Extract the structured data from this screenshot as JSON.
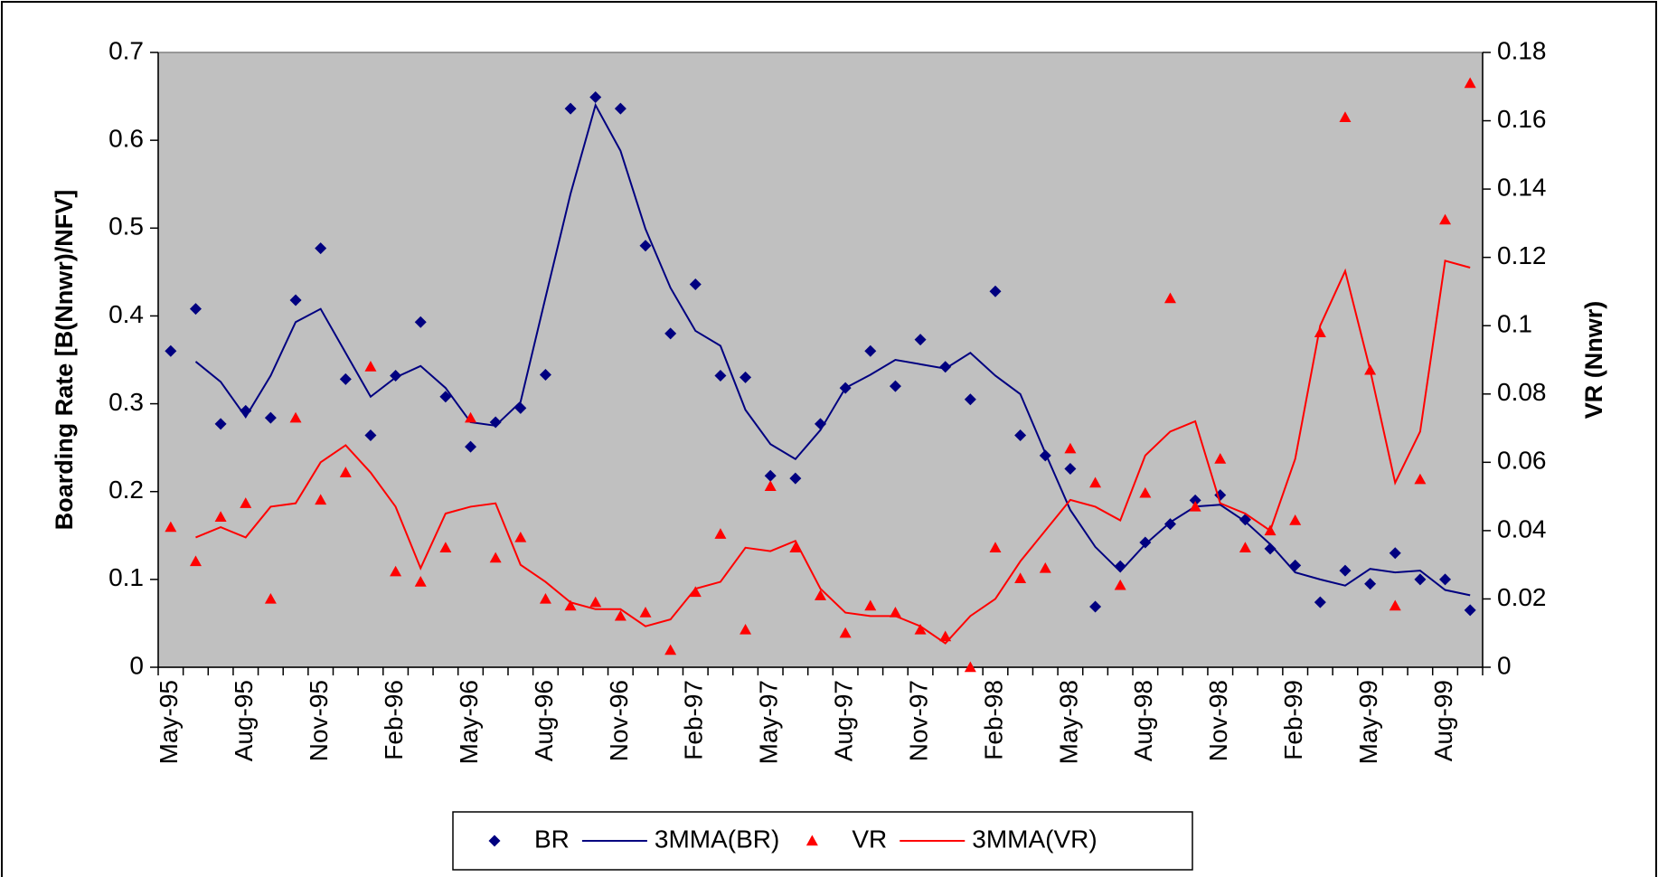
{
  "chart_data": {
    "type": "line",
    "y_label": "Boarding Rate [B(Nnwr)/NFV]",
    "y2_label": "VR (Nnwr)",
    "categories": [
      "May-95",
      null,
      null,
      "Aug-95",
      null,
      null,
      "Nov-95",
      null,
      null,
      "Feb-96",
      null,
      null,
      "May-96",
      null,
      null,
      "Aug-96",
      null,
      null,
      "Nov-96",
      null,
      null,
      "Feb-97",
      null,
      null,
      "May-97",
      null,
      null,
      "Aug-97",
      null,
      null,
      "Nov-97",
      null,
      null,
      "Feb-98",
      null,
      null,
      "May-98",
      null,
      null,
      "Aug-98",
      null,
      null,
      "Nov-98",
      null,
      null,
      "Feb-99",
      null,
      null,
      "May-99",
      null,
      null,
      "Aug-99",
      null
    ],
    "ylim": [
      0,
      0.7
    ],
    "yticks": [
      0,
      0.1,
      0.2,
      0.3,
      0.4,
      0.5,
      0.6,
      0.7
    ],
    "y2lim": [
      0,
      0.18
    ],
    "y2ticks": [
      0,
      0.02,
      0.04,
      0.06,
      0.08,
      0.1,
      0.12,
      0.14,
      0.16,
      0.18
    ],
    "background": "#c0c0c0",
    "legend": "bottom",
    "series": [
      {
        "name": "BR",
        "color": "#000080",
        "mode": "markers",
        "marker": "diamond",
        "values": [
          0.36,
          0.408,
          0.277,
          0.292,
          0.284,
          0.418,
          0.477,
          0.328,
          0.264,
          0.332,
          0.393,
          0.308,
          0.251,
          0.279,
          0.295,
          0.333,
          0.636,
          0.649,
          0.636,
          0.48,
          0.38,
          0.436,
          0.332,
          0.33,
          0.218,
          0.215,
          0.277,
          0.318,
          0.36,
          0.32,
          0.373,
          0.342,
          0.305,
          0.428,
          0.264,
          0.241,
          0.226,
          0.069,
          0.115,
          0.142,
          0.163,
          0.19,
          0.196,
          0.168,
          0.135,
          0.116,
          0.074,
          0.11,
          0.095,
          0.13,
          0.1,
          0.1,
          0.065
        ]
      },
      {
        "name": "3MMA(BR)",
        "color": "#000080",
        "mode": "line",
        "values": [
          null,
          0.348,
          0.325,
          0.285,
          0.332,
          0.393,
          0.408,
          0.358,
          0.308,
          0.33,
          0.343,
          0.318,
          0.279,
          0.275,
          0.302,
          0.421,
          0.539,
          0.64,
          0.588,
          0.499,
          0.432,
          0.383,
          0.366,
          0.293,
          0.254,
          0.237,
          0.27,
          0.318,
          0.333,
          0.35,
          0.345,
          0.34,
          0.358,
          0.332,
          0.311,
          0.244,
          0.179,
          0.137,
          0.109,
          0.14,
          0.165,
          0.183,
          0.185,
          0.166,
          0.14,
          0.108,
          0.1,
          0.093,
          0.112,
          0.108,
          0.11,
          0.088,
          0.082
        ]
      },
      {
        "name": "VR",
        "color": "#ff0000",
        "mode": "markers",
        "marker": "triangle",
        "axis": "y2",
        "values": [
          0.041,
          0.031,
          0.044,
          0.048,
          0.02,
          0.073,
          0.049,
          0.057,
          0.088,
          0.028,
          0.025,
          0.035,
          0.073,
          0.032,
          0.038,
          0.02,
          0.018,
          0.019,
          0.015,
          0.016,
          0.005,
          0.022,
          0.039,
          0.011,
          0.053,
          0.035,
          0.021,
          0.01,
          0.018,
          0.016,
          0.011,
          0.009,
          0,
          0.035,
          0.026,
          0.029,
          0.064,
          0.054,
          0.024,
          0.051,
          0.108,
          0.047,
          0.061,
          0.035,
          0.04,
          0.043,
          0.098,
          0.161,
          0.087,
          0.018,
          0.055,
          0.131,
          0.171
        ]
      },
      {
        "name": "3MMA(VR)",
        "color": "#ff0000",
        "mode": "line",
        "axis": "y2",
        "values": [
          null,
          0.038,
          0.041,
          0.038,
          0.047,
          0.048,
          0.06,
          0.065,
          0.057,
          0.047,
          0.029,
          0.045,
          0.047,
          0.048,
          0.03,
          0.025,
          0.019,
          0.017,
          0.017,
          0.012,
          0.014,
          0.023,
          0.025,
          0.035,
          0.034,
          0.037,
          0.023,
          0.016,
          0.015,
          0.015,
          0.012,
          0.007,
          0.015,
          0.02,
          0.031,
          0.04,
          0.049,
          0.047,
          0.043,
          0.062,
          0.069,
          0.072,
          0.048,
          0.045,
          0.04,
          0.061,
          0.1,
          0.116,
          0.087,
          0.054,
          0.069,
          0.119,
          0.117
        ]
      }
    ]
  }
}
